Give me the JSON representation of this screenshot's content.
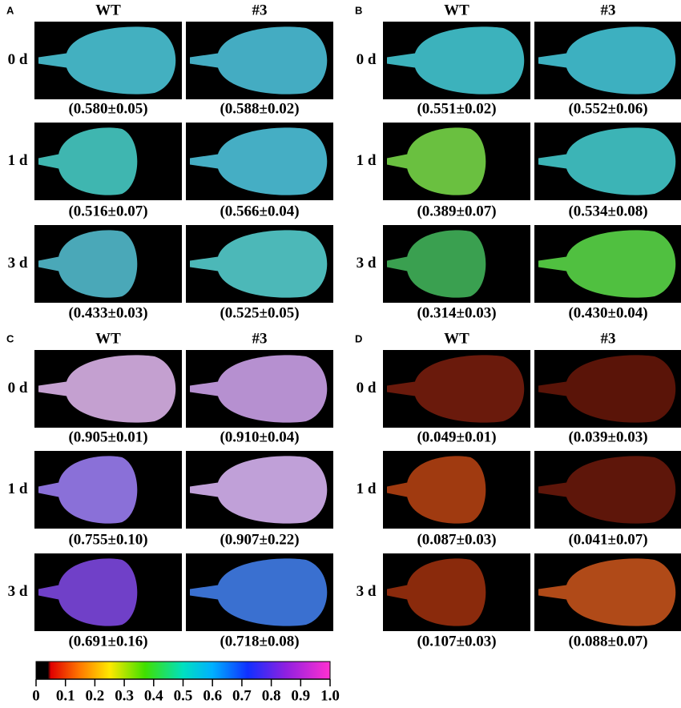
{
  "panels": [
    {
      "label": "A",
      "columns": [
        "WT",
        "#3"
      ],
      "rows": [
        {
          "label": "0 d",
          "values": [
            "(0.580±0.05)",
            "(0.588±0.02)"
          ]
        },
        {
          "label": "1 d",
          "values": [
            "(0.516±0.07)",
            "(0.566±0.04)"
          ]
        },
        {
          "label": "3 d",
          "values": [
            "(0.433±0.03)",
            "(0.525±0.05)"
          ]
        }
      ]
    },
    {
      "label": "B",
      "columns": [
        "WT",
        "#3"
      ],
      "rows": [
        {
          "label": "0 d",
          "values": [
            "(0.551±0.02)",
            "(0.552±0.06)"
          ]
        },
        {
          "label": "1 d",
          "values": [
            "(0.389±0.07)",
            "(0.534±0.08)"
          ]
        },
        {
          "label": "3 d",
          "values": [
            "(0.314±0.03)",
            "(0.430±0.04)"
          ]
        }
      ]
    },
    {
      "label": "C",
      "columns": [
        "WT",
        "#3"
      ],
      "rows": [
        {
          "label": "0 d",
          "values": [
            "(0.905±0.01)",
            "(0.910±0.04)"
          ]
        },
        {
          "label": "1 d",
          "values": [
            "(0.755±0.10)",
            "(0.907±0.22)"
          ]
        },
        {
          "label": "3 d",
          "values": [
            "(0.691±0.16)",
            "(0.718±0.08)"
          ]
        }
      ]
    },
    {
      "label": "D",
      "columns": [
        "WT",
        "#3"
      ],
      "rows": [
        {
          "label": "0 d",
          "values": [
            "(0.049±0.01)",
            "(0.039±0.03)"
          ]
        },
        {
          "label": "1 d",
          "values": [
            "(0.087±0.03)",
            "(0.041±0.07)"
          ]
        },
        {
          "label": "3 d",
          "values": [
            "(0.107±0.03)",
            "(0.088±0.07)"
          ]
        }
      ]
    }
  ],
  "colorbar": {
    "xlim": [
      0,
      1
    ],
    "xticks": [
      0,
      0.1,
      0.2,
      0.3,
      0.4,
      0.5,
      0.6,
      0.7,
      0.8,
      0.9,
      {
        "value": 1,
        "label": "1.0"
      }
    ]
  }
}
